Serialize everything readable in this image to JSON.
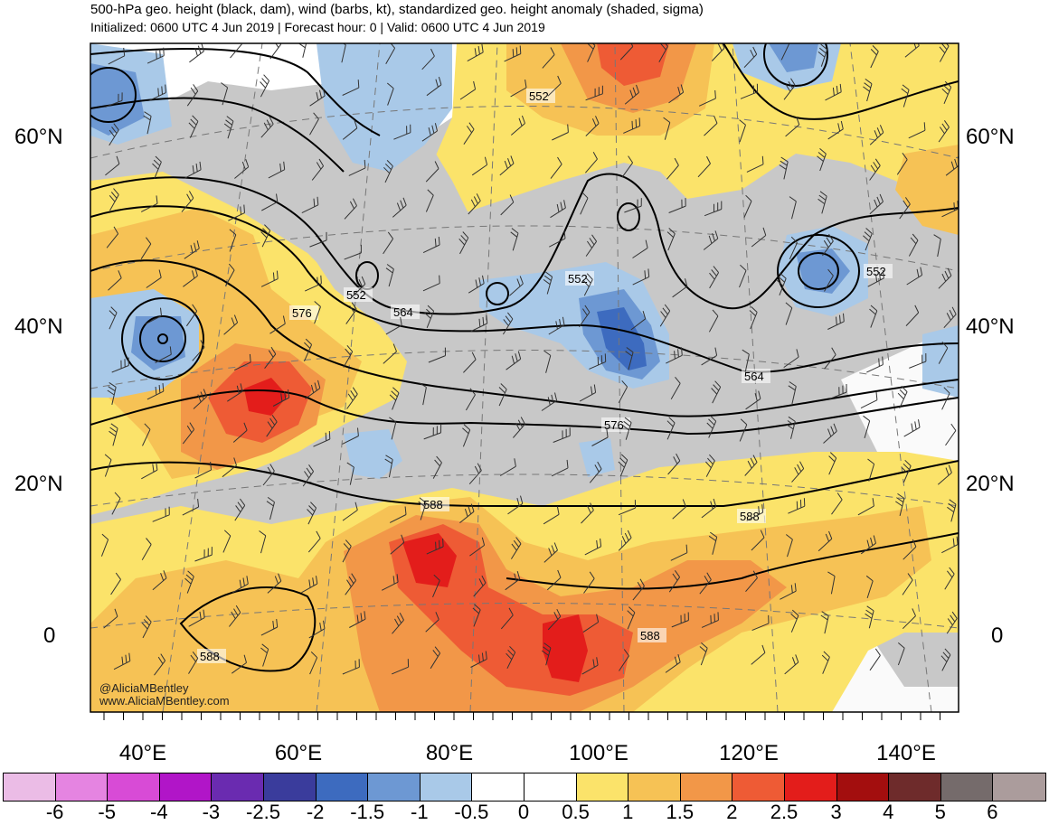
{
  "header": {
    "title": "500-hPa geo. height (black, dam), wind (barbs, kt), standardized geo. height anomaly (shaded, sigma)",
    "subtitle": "Initialized: 0600 UTC 4 Jun 2019 | Forecast hour: 0 | Valid: 0600 UTC 4 Jun 2019"
  },
  "axes": {
    "lat_labels_left": [
      "60°N",
      "40°N",
      "20°N",
      "0"
    ],
    "lat_labels_right": [
      "60°N",
      "40°N",
      "20°N",
      "0"
    ],
    "lon_labels": [
      "40°E",
      "60°E",
      "80°E",
      "100°E",
      "120°E",
      "140°E"
    ]
  },
  "contour_labels": [
    "552",
    "552",
    "552",
    "552",
    "564",
    "564",
    "576",
    "576",
    "588",
    "588",
    "588",
    "588"
  ],
  "watermark": [
    "@AliciaMBentley",
    "www.AliciaMBentley.com"
  ],
  "colorbar": {
    "labels": [
      "-6",
      "-5",
      "-4",
      "-3",
      "-2.5",
      "-2",
      "-1.5",
      "-1",
      "-0.5",
      "0",
      "0.5",
      "1",
      "1.5",
      "2",
      "2.5",
      "3",
      "4",
      "5",
      "6"
    ],
    "colors": [
      "#ebbce6",
      "#e584e1",
      "#d84bd6",
      "#b115c8",
      "#6a2bb0",
      "#3a3c9c",
      "#3d6bbf",
      "#6d98d3",
      "#a9c9e8",
      "#ffffff",
      "#ffffff",
      "#fbe36a",
      "#f6c255",
      "#f29748",
      "#ee5b35",
      "#e31d1b",
      "#a30e0e",
      "#6e2b2b",
      "#756b6b",
      "#ab9c9c"
    ]
  },
  "colors": {
    "neutral_gray": "#c8c8c8",
    "contour": "#000000"
  }
}
